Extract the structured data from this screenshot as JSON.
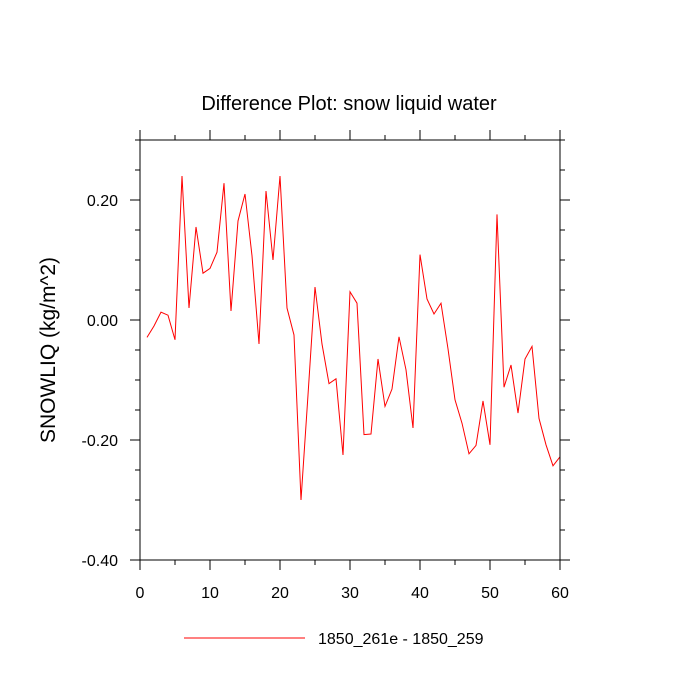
{
  "chart_data": {
    "type": "line",
    "title": "Difference Plot: snow liquid water",
    "xlabel": "",
    "ylabel": "SNOWLIQ  (kg/m^2)",
    "xlim": [
      0,
      60
    ],
    "ylim": [
      -0.4,
      0.3
    ],
    "x_ticks": [
      0,
      10,
      20,
      30,
      40,
      50,
      60
    ],
    "x_tick_labels": [
      "0",
      "10",
      "20",
      "30",
      "40",
      "50",
      "60"
    ],
    "y_ticks": [
      -0.4,
      -0.2,
      0.0,
      0.2
    ],
    "y_tick_labels": [
      "-0.40",
      "-0.20",
      "0.00",
      "0.20"
    ],
    "grid": false,
    "legend_position": "bottom-center",
    "series": [
      {
        "name": "1850_261e - 1850_259",
        "color": "#ff0000",
        "x": [
          1,
          2,
          3,
          4,
          5,
          6,
          7,
          8,
          9,
          10,
          11,
          12,
          13,
          14,
          15,
          16,
          17,
          18,
          19,
          20,
          21,
          22,
          23,
          24,
          25,
          26,
          27,
          28,
          29,
          30,
          31,
          32,
          33,
          34,
          35,
          36,
          37,
          38,
          39,
          40,
          41,
          42,
          43,
          44,
          45,
          46,
          47,
          48,
          49,
          50,
          51,
          52,
          53,
          54,
          55,
          56,
          57,
          58,
          59,
          60
        ],
        "values": [
          -0.029,
          -0.01,
          0.013,
          0.008,
          -0.033,
          0.24,
          0.02,
          0.155,
          0.078,
          0.086,
          0.113,
          0.228,
          0.015,
          0.165,
          0.21,
          0.107,
          -0.04,
          0.215,
          0.1,
          0.24,
          0.02,
          -0.025,
          -0.3,
          -0.125,
          0.055,
          -0.04,
          -0.106,
          -0.098,
          -0.225,
          0.047,
          0.028,
          -0.191,
          -0.19,
          -0.065,
          -0.144,
          -0.115,
          -0.028,
          -0.083,
          -0.18,
          0.109,
          0.035,
          0.01,
          0.028,
          -0.048,
          -0.133,
          -0.172,
          -0.223,
          -0.209,
          -0.135,
          -0.208,
          0.176,
          -0.112,
          -0.075,
          -0.155,
          -0.065,
          -0.044,
          -0.164,
          -0.208,
          -0.243,
          -0.228
        ]
      }
    ]
  }
}
